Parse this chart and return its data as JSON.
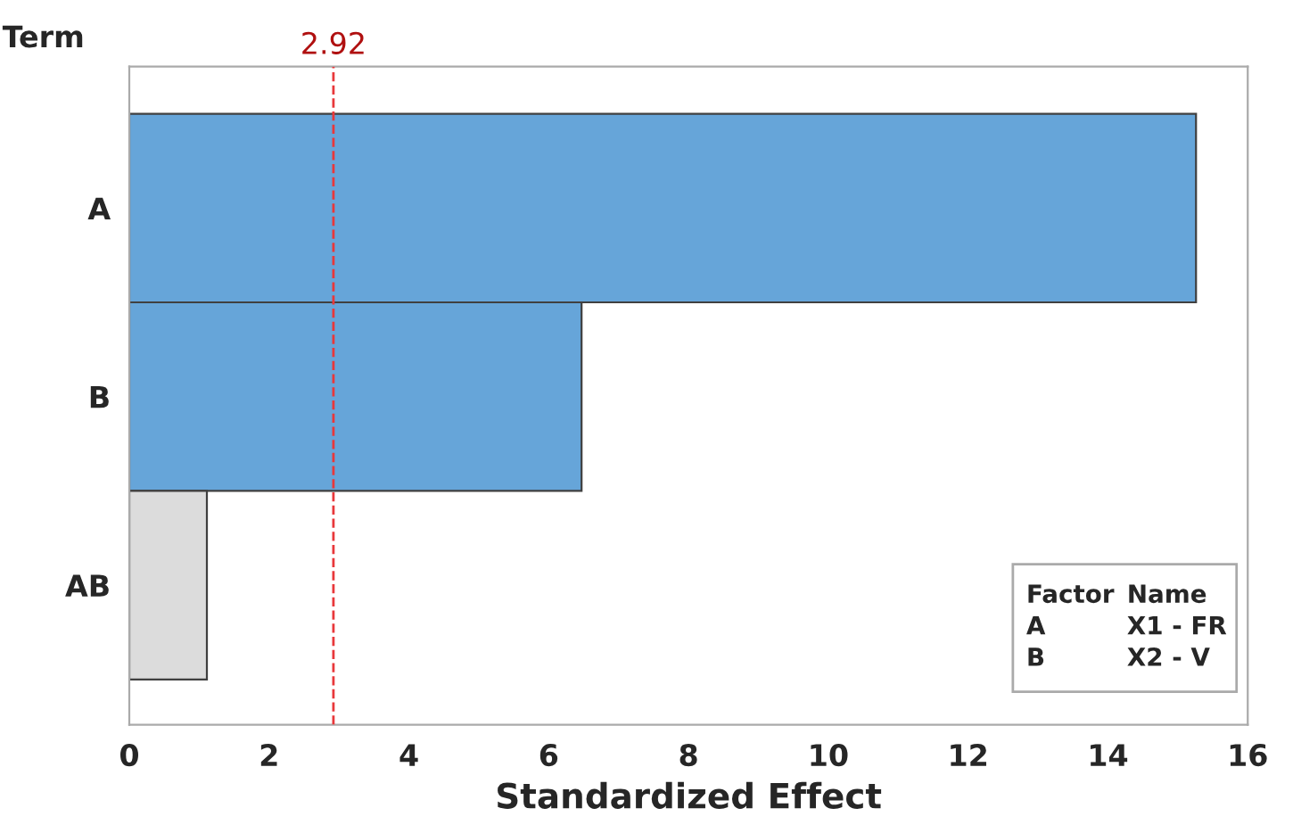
{
  "chart_data": {
    "type": "bar",
    "orientation": "horizontal",
    "xlabel": "Standardized Effect",
    "ylabel": "Term",
    "categories": [
      "A",
      "B",
      "AB"
    ],
    "values": [
      15.26,
      6.47,
      1.11
    ],
    "colors": [
      "#66a5d9",
      "#66a5d9",
      "#dcdcdc"
    ],
    "xlim": [
      0,
      16
    ],
    "xticks": [
      0,
      2,
      4,
      6,
      8,
      10,
      12,
      14,
      16
    ],
    "ref_lines": [
      {
        "axis": "x",
        "value": 2.92,
        "label": "2.92",
        "color": "#e8383b",
        "line_style": "dashed"
      }
    ],
    "annotations": [
      "Factor",
      "Name",
      "A",
      "X1 - FR",
      "B",
      "X2 - V"
    ],
    "grid": false,
    "legend": false
  }
}
